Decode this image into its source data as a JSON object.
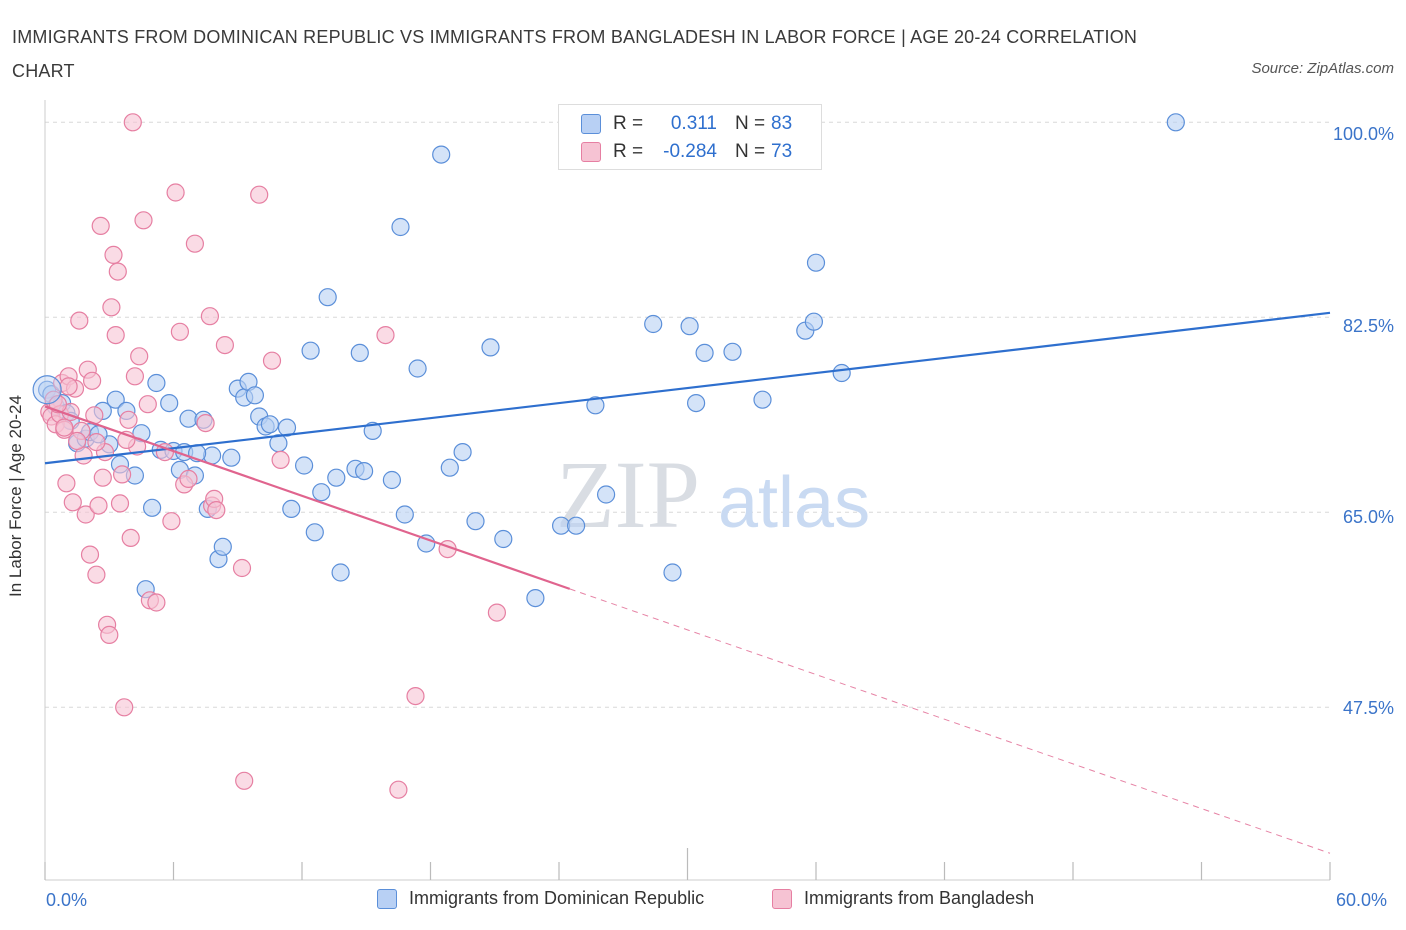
{
  "title": "IMMIGRANTS FROM DOMINICAN REPUBLIC VS IMMIGRANTS FROM BANGLADESH IN LABOR FORCE | AGE 20-24 CORRELATION CHART",
  "source": "Source: ZipAtlas.com",
  "watermark": {
    "zip": "ZIP",
    "atlas": "atlas"
  },
  "legend": {
    "r_label": "R =",
    "n_label": "N =",
    "rows": [
      {
        "r": "0.311",
        "n": "83"
      },
      {
        "r": "-0.284",
        "n": "73"
      }
    ]
  },
  "colors": {
    "blue_fill": "#b8d0f4",
    "blue_stroke": "#5b8fd9",
    "blue_line": "#2e6fce",
    "pink_fill": "#f6c3d3",
    "pink_stroke": "#e67fa2",
    "pink_line": "#e0648e",
    "grid": "#d8d8d8",
    "tick_text": "#3b74c9"
  },
  "chart_data": {
    "type": "scatter",
    "title": "IMMIGRANTS FROM DOMINICAN REPUBLIC VS IMMIGRANTS FROM BANGLADESH IN LABOR FORCE | AGE 20-24 CORRELATION CHART",
    "xlabel": "",
    "ylabel": "In Labor Force | Age 20-24",
    "xlim": [
      0,
      60
    ],
    "ylim": [
      32,
      102
    ],
    "x_tick_labels": [
      "0.0%",
      "60.0%"
    ],
    "y_ticks": [
      47.5,
      65.0,
      82.5,
      100.0
    ],
    "y_tick_labels": [
      "47.5%",
      "65.0%",
      "82.5%",
      "100.0%"
    ],
    "grid": true,
    "series": [
      {
        "name": "Immigrants from Dominican Republic",
        "r": 0.311,
        "n": 83,
        "trend": {
          "x": [
            0,
            60
          ],
          "y": [
            69.4,
            82.9
          ],
          "dashed_from": null
        },
        "points": [
          [
            0.1,
            76.0
          ],
          [
            0.3,
            75.6
          ],
          [
            0.5,
            74.5
          ],
          [
            0.8,
            74.8
          ],
          [
            1.0,
            73.9
          ],
          [
            1.2,
            73.2
          ],
          [
            1.5,
            71.2
          ],
          [
            1.9,
            71.6
          ],
          [
            2.1,
            72.2
          ],
          [
            2.7,
            74.1
          ],
          [
            3.0,
            71.1
          ],
          [
            3.3,
            75.1
          ],
          [
            3.5,
            69.3
          ],
          [
            3.8,
            74.1
          ],
          [
            4.2,
            68.3
          ],
          [
            4.5,
            72.1
          ],
          [
            4.7,
            58.1
          ],
          [
            5.0,
            65.4
          ],
          [
            5.2,
            76.6
          ],
          [
            5.4,
            70.6
          ],
          [
            5.8,
            74.8
          ],
          [
            6.0,
            70.5
          ],
          [
            6.3,
            68.8
          ],
          [
            6.5,
            70.4
          ],
          [
            6.7,
            73.4
          ],
          [
            7.0,
            68.3
          ],
          [
            7.4,
            73.3
          ],
          [
            7.6,
            65.3
          ],
          [
            7.8,
            70.1
          ],
          [
            8.1,
            60.8
          ],
          [
            8.3,
            61.9
          ],
          [
            8.7,
            69.9
          ],
          [
            9.0,
            76.1
          ],
          [
            9.3,
            75.3
          ],
          [
            9.5,
            76.7
          ],
          [
            9.8,
            75.5
          ],
          [
            10.0,
            73.6
          ],
          [
            10.3,
            72.7
          ],
          [
            10.5,
            72.9
          ],
          [
            10.9,
            71.2
          ],
          [
            11.3,
            72.6
          ],
          [
            11.5,
            65.3
          ],
          [
            12.1,
            69.2
          ],
          [
            12.4,
            79.5
          ],
          [
            12.6,
            63.2
          ],
          [
            12.9,
            66.8
          ],
          [
            13.2,
            84.3
          ],
          [
            13.6,
            68.1
          ],
          [
            13.8,
            59.6
          ],
          [
            14.5,
            68.9
          ],
          [
            14.7,
            79.3
          ],
          [
            14.9,
            68.7
          ],
          [
            15.3,
            72.3
          ],
          [
            16.2,
            67.9
          ],
          [
            16.6,
            90.6
          ],
          [
            16.8,
            64.8
          ],
          [
            17.4,
            77.9
          ],
          [
            17.8,
            62.2
          ],
          [
            18.5,
            97.1
          ],
          [
            18.9,
            69.0
          ],
          [
            19.5,
            70.4
          ],
          [
            20.1,
            64.2
          ],
          [
            20.8,
            79.8
          ],
          [
            21.4,
            62.6
          ],
          [
            22.9,
            57.3
          ],
          [
            24.1,
            63.8
          ],
          [
            24.8,
            63.8
          ],
          [
            25.7,
            74.6
          ],
          [
            26.2,
            66.6
          ],
          [
            28.4,
            81.9
          ],
          [
            29.3,
            59.6
          ],
          [
            30.1,
            81.7
          ],
          [
            30.4,
            74.8
          ],
          [
            30.8,
            79.3
          ],
          [
            32.1,
            79.4
          ],
          [
            33.5,
            75.1
          ],
          [
            35.5,
            81.3
          ],
          [
            35.9,
            82.1
          ],
          [
            36.0,
            87.4
          ],
          [
            37.2,
            77.5
          ],
          [
            52.8,
            100.0
          ],
          [
            7.1,
            70.3
          ],
          [
            2.5,
            72.0
          ]
        ]
      },
      {
        "name": "Immigrants from Bangladesh",
        "r": -0.284,
        "n": 73,
        "trend": {
          "x": [
            0,
            60
          ],
          "y": [
            74.5,
            34.4
          ],
          "dashed_from": 24.5
        },
        "points": [
          [
            0.2,
            74.0
          ],
          [
            0.3,
            73.6
          ],
          [
            0.4,
            75.1
          ],
          [
            0.5,
            72.9
          ],
          [
            0.7,
            73.8
          ],
          [
            0.8,
            76.6
          ],
          [
            0.9,
            72.4
          ],
          [
            1.0,
            67.6
          ],
          [
            1.1,
            77.2
          ],
          [
            1.2,
            74.0
          ],
          [
            1.3,
            65.9
          ],
          [
            1.4,
            76.1
          ],
          [
            1.6,
            82.2
          ],
          [
            1.7,
            72.3
          ],
          [
            1.8,
            70.1
          ],
          [
            1.9,
            64.8
          ],
          [
            2.0,
            77.8
          ],
          [
            2.1,
            61.2
          ],
          [
            2.2,
            76.8
          ],
          [
            2.3,
            73.7
          ],
          [
            2.4,
            59.4
          ],
          [
            2.5,
            65.6
          ],
          [
            2.6,
            90.7
          ],
          [
            2.7,
            68.1
          ],
          [
            2.8,
            70.4
          ],
          [
            2.9,
            54.9
          ],
          [
            3.0,
            54.0
          ],
          [
            3.1,
            83.4
          ],
          [
            3.2,
            88.1
          ],
          [
            3.3,
            80.9
          ],
          [
            3.4,
            86.6
          ],
          [
            3.5,
            65.8
          ],
          [
            3.6,
            68.4
          ],
          [
            3.7,
            47.5
          ],
          [
            3.9,
            73.3
          ],
          [
            4.0,
            62.7
          ],
          [
            4.1,
            100.0
          ],
          [
            4.3,
            70.9
          ],
          [
            4.4,
            79.0
          ],
          [
            4.6,
            91.2
          ],
          [
            4.8,
            74.7
          ],
          [
            4.9,
            57.1
          ],
          [
            5.2,
            56.9
          ],
          [
            5.6,
            70.4
          ],
          [
            5.9,
            64.2
          ],
          [
            6.1,
            93.7
          ],
          [
            6.3,
            81.2
          ],
          [
            6.5,
            67.5
          ],
          [
            6.7,
            68.0
          ],
          [
            7.0,
            89.1
          ],
          [
            7.5,
            73.0
          ],
          [
            7.7,
            82.6
          ],
          [
            7.8,
            65.6
          ],
          [
            7.9,
            66.2
          ],
          [
            8.0,
            65.2
          ],
          [
            8.4,
            80.0
          ],
          [
            9.2,
            60.0
          ],
          [
            9.3,
            40.9
          ],
          [
            10.0,
            93.5
          ],
          [
            10.6,
            78.6
          ],
          [
            11.0,
            69.7
          ],
          [
            15.9,
            80.9
          ],
          [
            17.3,
            48.5
          ],
          [
            16.5,
            40.1
          ],
          [
            18.8,
            61.7
          ],
          [
            21.1,
            56.0
          ],
          [
            1.5,
            71.4
          ],
          [
            0.6,
            74.7
          ],
          [
            2.4,
            71.3
          ],
          [
            3.8,
            71.5
          ],
          [
            4.2,
            77.2
          ],
          [
            1.1,
            76.3
          ],
          [
            0.9,
            72.6
          ]
        ]
      }
    ]
  }
}
